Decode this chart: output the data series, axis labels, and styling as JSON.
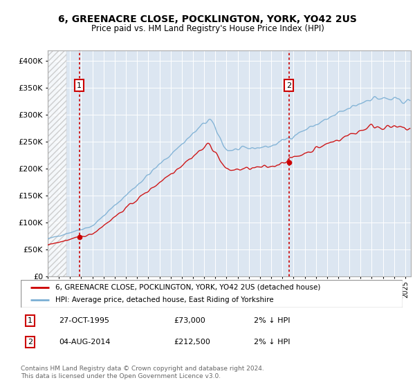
{
  "title": "6, GREENACRE CLOSE, POCKLINGTON, YORK, YO42 2US",
  "subtitle": "Price paid vs. HM Land Registry's House Price Index (HPI)",
  "legend_line1": "6, GREENACRE CLOSE, POCKLINGTON, YORK, YO42 2US (detached house)",
  "legend_line2": "HPI: Average price, detached house, East Riding of Yorkshire",
  "annotation1_date": "27-OCT-1995",
  "annotation1_price": "£73,000",
  "annotation1_hpi": "2% ↓ HPI",
  "annotation2_date": "04-AUG-2014",
  "annotation2_price": "£212,500",
  "annotation2_hpi": "2% ↓ HPI",
  "footer": "Contains HM Land Registry data © Crown copyright and database right 2024.\nThis data is licensed under the Open Government Licence v3.0.",
  "sale1_year": 1995.82,
  "sale1_price": 73000,
  "sale2_year": 2014.58,
  "sale2_price": 212500,
  "red_color": "#cc0000",
  "blue_color": "#7bafd4",
  "bg_color": "#dce6f1",
  "ylim_max": 420000,
  "xlim_min": 1993.0,
  "xlim_max": 2025.5,
  "yticks": [
    0,
    50000,
    100000,
    150000,
    200000,
    250000,
    300000,
    350000,
    400000
  ]
}
